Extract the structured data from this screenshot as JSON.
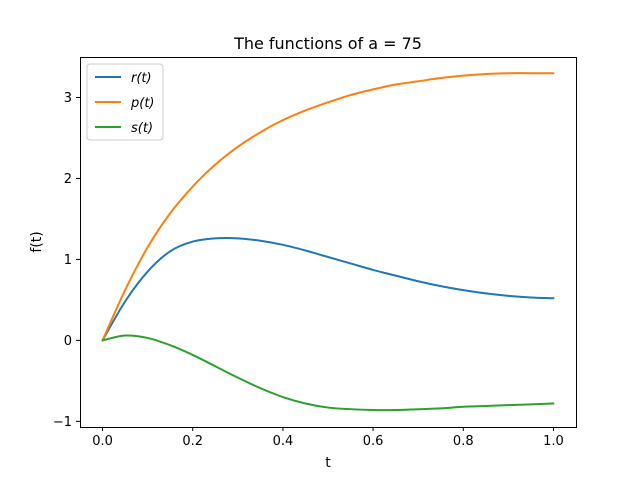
{
  "chart_data": {
    "type": "line",
    "title": "The functions of a = 75",
    "xlabel": "t",
    "ylabel": "f(t)",
    "xlim": [
      -0.05,
      1.05
    ],
    "ylim": [
      -1.07,
      3.5
    ],
    "xticks": [
      0.0,
      0.2,
      0.4,
      0.6,
      0.8,
      1.0
    ],
    "xtick_labels": [
      "0.0",
      "0.2",
      "0.4",
      "0.6",
      "0.8",
      "1.0"
    ],
    "yticks": [
      -1,
      0,
      1,
      2,
      3
    ],
    "ytick_labels": [
      "−1",
      "0",
      "1",
      "2",
      "3"
    ],
    "grid": false,
    "legend_position": "top-left",
    "x": [
      0.0,
      0.05,
      0.1,
      0.15,
      0.2,
      0.25,
      0.3,
      0.35,
      0.4,
      0.45,
      0.5,
      0.55,
      0.6,
      0.65,
      0.7,
      0.75,
      0.8,
      0.85,
      0.9,
      0.95,
      1.0
    ],
    "series": [
      {
        "name": "r(t)",
        "color": "#1f77b4",
        "values": [
          0.0,
          0.48,
          0.85,
          1.1,
          1.22,
          1.26,
          1.26,
          1.23,
          1.18,
          1.11,
          1.03,
          0.95,
          0.87,
          0.8,
          0.73,
          0.67,
          0.62,
          0.58,
          0.55,
          0.53,
          0.52
        ]
      },
      {
        "name": "p(t)",
        "color": "#ff7f0e",
        "values": [
          0.0,
          0.62,
          1.15,
          1.57,
          1.9,
          2.17,
          2.39,
          2.57,
          2.72,
          2.84,
          2.94,
          3.03,
          3.1,
          3.16,
          3.2,
          3.24,
          3.27,
          3.29,
          3.3,
          3.3,
          3.3
        ]
      },
      {
        "name": "s(t)",
        "color": "#2ca02c",
        "values": [
          0.0,
          0.06,
          0.03,
          -0.06,
          -0.18,
          -0.32,
          -0.46,
          -0.59,
          -0.7,
          -0.78,
          -0.83,
          -0.85,
          -0.86,
          -0.86,
          -0.85,
          -0.84,
          -0.82,
          -0.81,
          -0.8,
          -0.79,
          -0.78
        ]
      }
    ]
  }
}
